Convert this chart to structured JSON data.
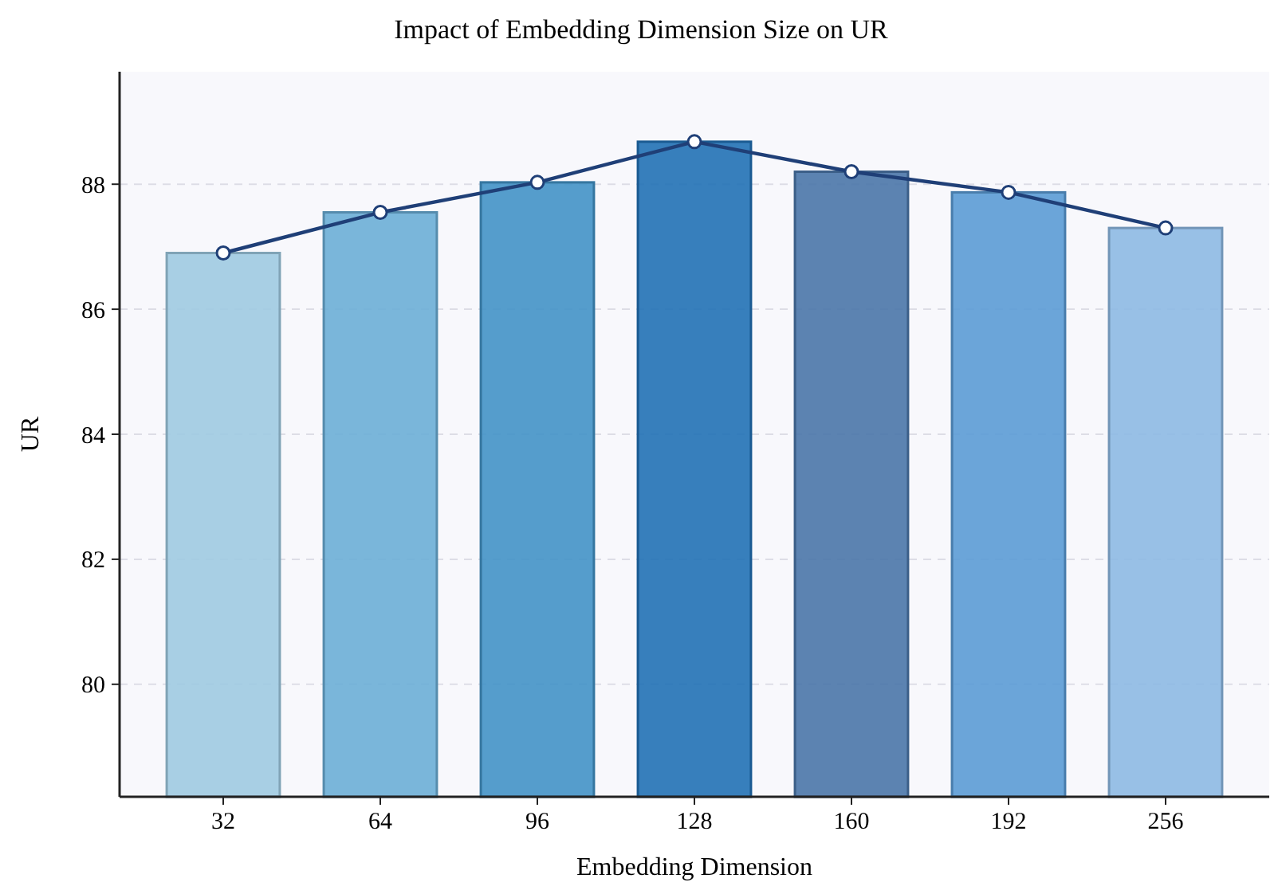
{
  "chart_data": {
    "type": "bar",
    "title": "Impact of Embedding Dimension Size on UR",
    "xlabel": "Embedding Dimension",
    "ylabel": "UR",
    "categories": [
      "32",
      "64",
      "96",
      "128",
      "160",
      "192",
      "256"
    ],
    "series": [
      {
        "colors": [
          "#9ecae1",
          "#6baed6",
          "#4292c6",
          "#2171b5",
          "#4a76a8",
          "#5b9bd5",
          "#8db9e3"
        ],
        "values": [
          86.9,
          87.55,
          88.03,
          88.68,
          88.2,
          87.87,
          87.3
        ]
      },
      {
        "type": "line",
        "color": "#1f3f77",
        "values": [
          86.9,
          87.55,
          88.03,
          88.68,
          88.2,
          87.87,
          87.3
        ]
      }
    ],
    "ylim": [
      78.2,
      89.8
    ],
    "yticks": [
      80,
      82,
      84,
      86,
      88
    ],
    "grid": "y",
    "marker": "circle",
    "line_style": "solid"
  }
}
